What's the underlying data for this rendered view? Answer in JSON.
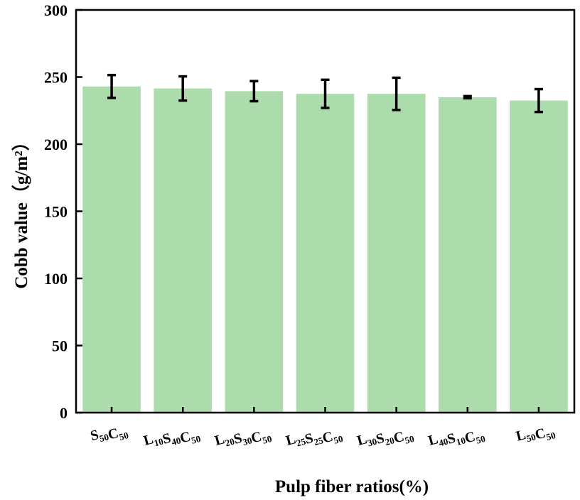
{
  "chart_data": {
    "type": "bar",
    "title": "",
    "xlabel": "Pulp fiber ratios(%)",
    "ylabel": "Cobb value（g/m²）",
    "ylim": [
      0,
      300
    ],
    "yticks": [
      0,
      50,
      100,
      150,
      200,
      250,
      300
    ],
    "grid": false,
    "bar_color": "#acdcac",
    "categories": [
      [
        {
          "t": "S",
          "s": "50"
        },
        {
          "t": "C",
          "s": "50"
        }
      ],
      [
        {
          "t": "L",
          "s": "10"
        },
        {
          "t": "S",
          "s": "40"
        },
        {
          "t": "C",
          "s": "50"
        }
      ],
      [
        {
          "t": "L",
          "s": "20"
        },
        {
          "t": "S",
          "s": "30"
        },
        {
          "t": "C",
          "s": "50"
        }
      ],
      [
        {
          "t": "L",
          "s": "25"
        },
        {
          "t": "S",
          "s": "25"
        },
        {
          "t": "C",
          "s": "50"
        }
      ],
      [
        {
          "t": "L",
          "s": "30"
        },
        {
          "t": "S",
          "s": "20"
        },
        {
          "t": "C",
          "s": "50"
        }
      ],
      [
        {
          "t": "L",
          "s": "40"
        },
        {
          "t": "S",
          "s": "10"
        },
        {
          "t": "C",
          "s": "50"
        }
      ],
      [
        {
          "t": "L",
          "s": "50"
        },
        {
          "t": "C",
          "s": "50"
        }
      ]
    ],
    "values": [
      243,
      241.5,
      239.5,
      237.5,
      237.5,
      235,
      232.5
    ],
    "errors": [
      8.5,
      9,
      7.5,
      10.5,
      12,
      0.8,
      8.5
    ]
  }
}
